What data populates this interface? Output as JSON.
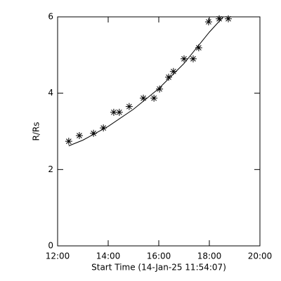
{
  "chart_data": {
    "type": "scatter",
    "xlabel": "Start Time (14-Jan-25 11:54:07)",
    "ylabel": "R/Rs",
    "xlim": [
      12,
      20
    ],
    "xticks": [
      {
        "value": 12,
        "label": "12:00"
      },
      {
        "value": 14,
        "label": "14:00"
      },
      {
        "value": 16,
        "label": "16:00"
      },
      {
        "value": 18,
        "label": "18:00"
      },
      {
        "value": 20,
        "label": "20:00"
      }
    ],
    "ylim": [
      0,
      6
    ],
    "yticks": [
      0,
      2,
      4,
      6
    ],
    "series": [
      {
        "marker": "asterisk",
        "color": "#000000",
        "x": [
          12.44,
          12.86,
          13.42,
          13.81,
          14.22,
          14.44,
          14.83,
          15.39,
          15.81,
          16.03,
          16.39,
          16.58,
          17.0,
          17.36,
          17.58,
          17.97,
          18.39,
          18.75
        ],
        "values": [
          2.74,
          2.89,
          2.95,
          3.09,
          3.5,
          3.5,
          3.65,
          3.87,
          3.87,
          4.11,
          4.42,
          4.57,
          4.9,
          4.9,
          5.19,
          5.87,
          5.95,
          5.95
        ]
      },
      {
        "marker": "line",
        "color": "#000000",
        "x": [
          12.44,
          13,
          14,
          15,
          16,
          17,
          18,
          18.55
        ],
        "values": [
          2.62,
          2.77,
          3.13,
          3.58,
          4.12,
          4.78,
          5.6,
          6.0
        ]
      }
    ]
  }
}
